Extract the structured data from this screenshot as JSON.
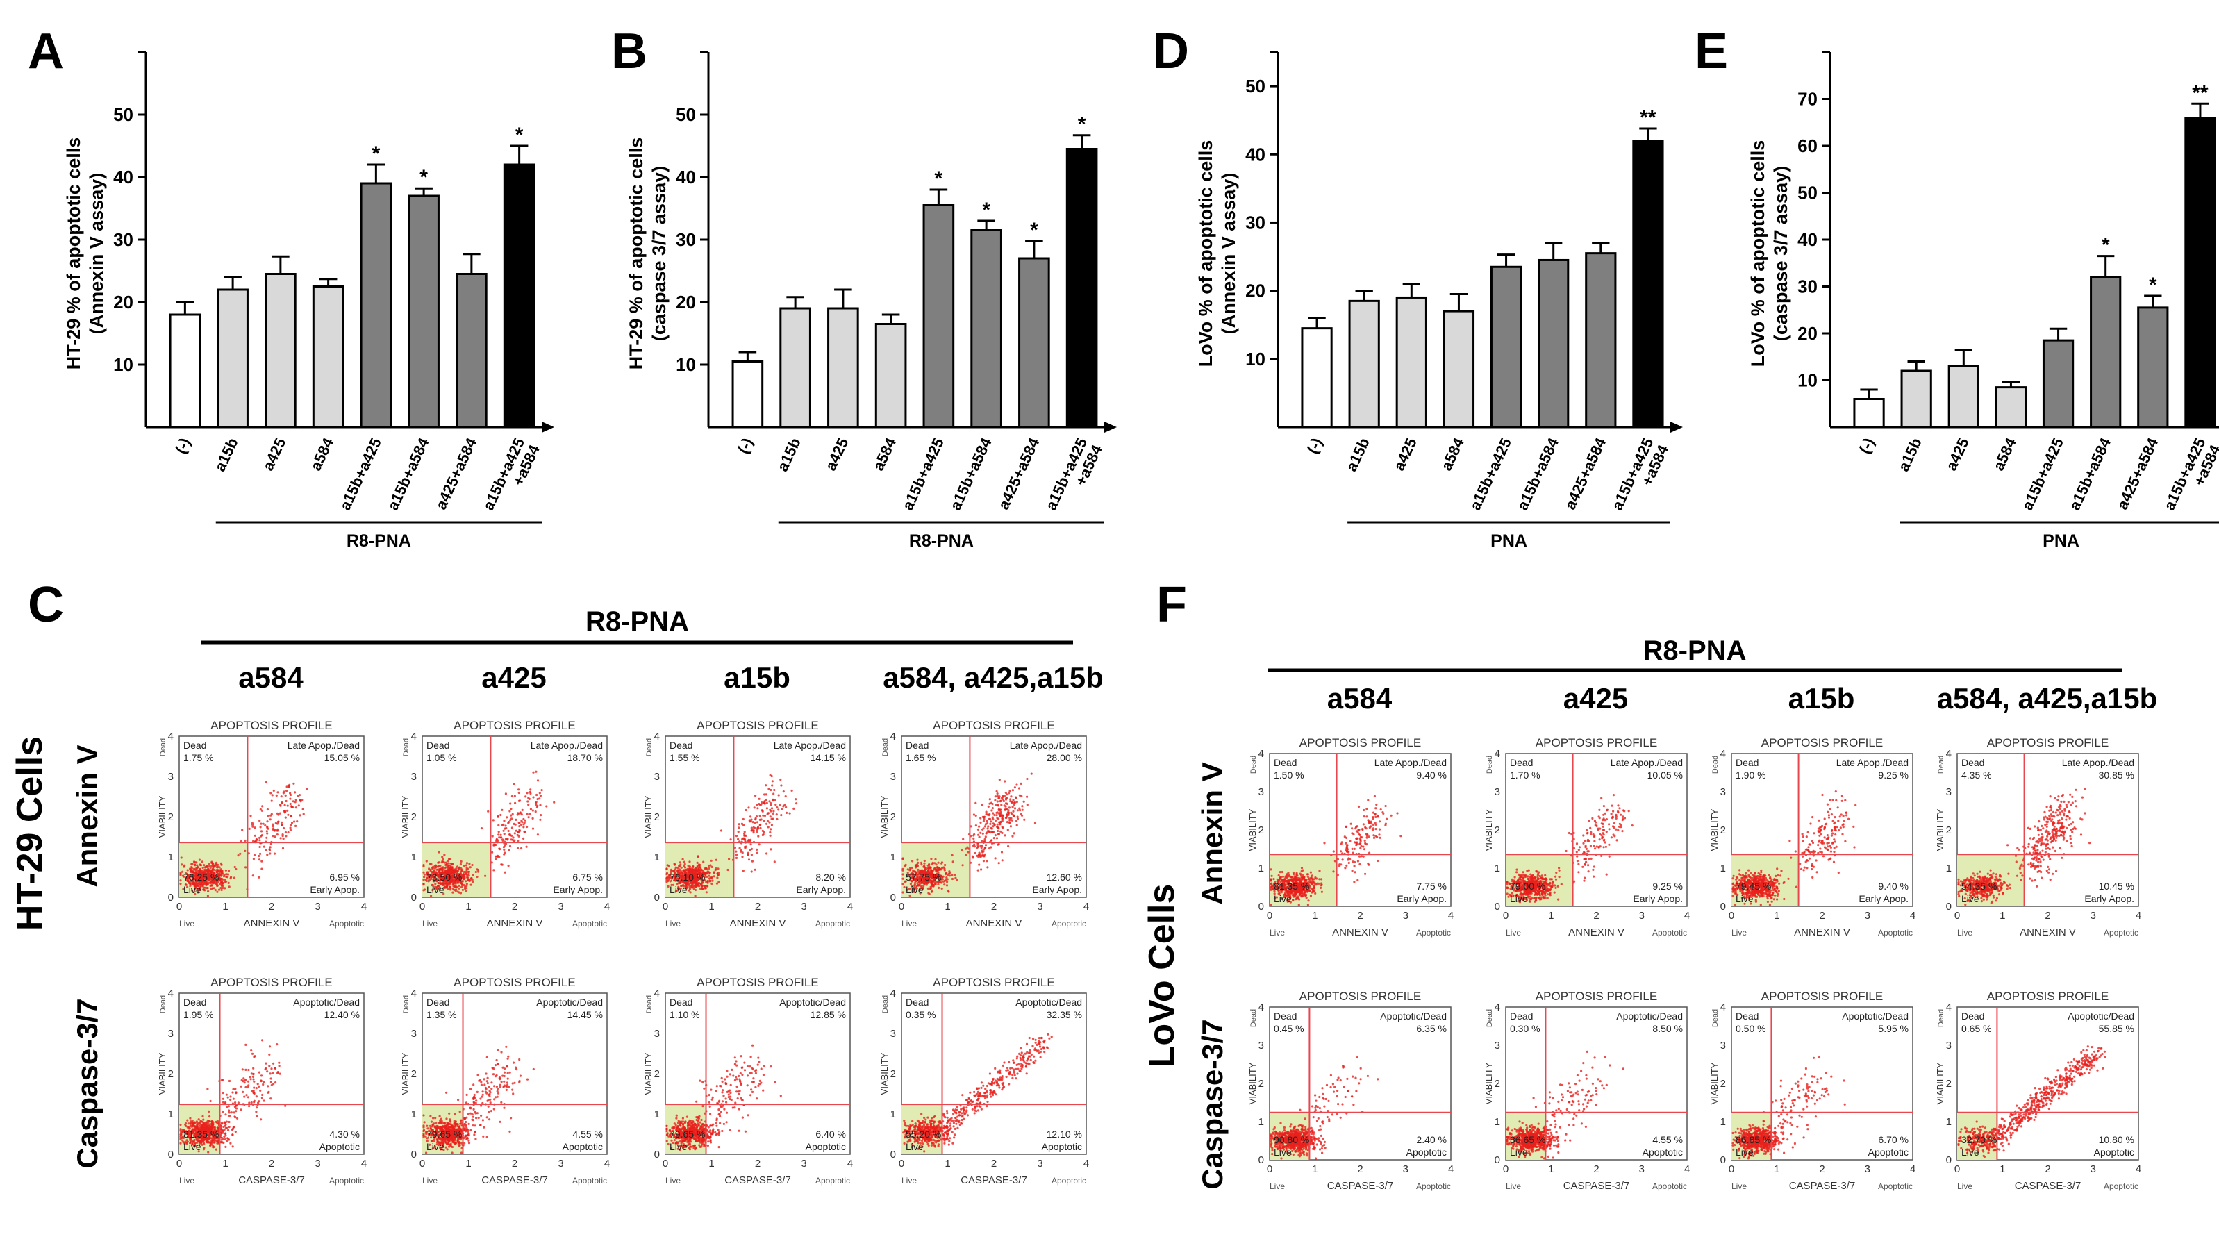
{
  "colors": {
    "open": "#ffffff",
    "light": "#d9d9d9",
    "mid": "#7f7f7f",
    "dark": "#000000",
    "dot": "#e8211d",
    "quad_line": "#e8474e",
    "live_zone": "#e1ecb4"
  },
  "chart_data": [
    {
      "type": "bar",
      "panel": "A",
      "ylabel_line1": "HT-29 % of apoptotic cells",
      "ylabel_line2": "(Annexin V assay)",
      "ylim": [
        0,
        60
      ],
      "yticks": [
        "10",
        "20",
        "30",
        "40",
        "50"
      ],
      "categories": [
        "(-)",
        "a15b",
        "a425",
        "a584",
        "a15b+a425",
        "a15b+a584",
        "a425+a584",
        "a15b+a425\n+a584"
      ],
      "values": [
        18,
        22,
        24.5,
        22.5,
        39,
        37,
        24.5,
        42
      ],
      "errors": [
        2,
        2,
        2.8,
        1.2,
        3,
        1.2,
        3.2,
        3
      ],
      "sig": [
        "",
        "",
        "",
        "",
        "*",
        "*",
        "",
        "*"
      ],
      "shades": [
        "open",
        "light",
        "light",
        "light",
        "mid",
        "mid",
        "mid",
        "dark"
      ],
      "group_label": "R8-PNA"
    },
    {
      "type": "bar",
      "panel": "B",
      "ylabel_line1": "HT-29 % of apoptotic cells",
      "ylabel_line2": "(caspase 3/7 assay)",
      "ylim": [
        0,
        60
      ],
      "yticks": [
        "10",
        "20",
        "30",
        "40",
        "50"
      ],
      "categories": [
        "(-)",
        "a15b",
        "a425",
        "a584",
        "a15b+a425",
        "a15b+a584",
        "a425+a584",
        "a15b+a425\n+a584"
      ],
      "values": [
        10.5,
        19,
        19,
        16.5,
        35.5,
        31.5,
        27,
        44.5
      ],
      "errors": [
        1.5,
        1.8,
        3,
        1.5,
        2.5,
        1.5,
        2.8,
        2.2
      ],
      "sig": [
        "",
        "",
        "",
        "",
        "*",
        "*",
        "*",
        "*"
      ],
      "shades": [
        "open",
        "light",
        "light",
        "light",
        "mid",
        "mid",
        "mid",
        "dark"
      ],
      "group_label": "R8-PNA"
    },
    {
      "type": "bar",
      "panel": "D",
      "ylabel_line1": "LoVo % of apoptotic cells",
      "ylabel_line2": "(Annexin V assay)",
      "ylim": [
        0,
        55
      ],
      "yticks": [
        "10",
        "20",
        "30",
        "40",
        "50"
      ],
      "categories": [
        "(-)",
        "a15b",
        "a425",
        "a584",
        "a15b+a425",
        "a15b+a584",
        "a425+a584",
        "a15b+a425\n+a584"
      ],
      "values": [
        14.5,
        18.5,
        19,
        17,
        23.5,
        24.5,
        25.5,
        42
      ],
      "errors": [
        1.5,
        1.5,
        2,
        2.5,
        1.8,
        2.5,
        1.5,
        1.8
      ],
      "sig": [
        "",
        "",
        "",
        "",
        "",
        "",
        "",
        "**"
      ],
      "shades": [
        "open",
        "light",
        "light",
        "light",
        "mid",
        "mid",
        "mid",
        "dark"
      ],
      "group_label": "PNA"
    },
    {
      "type": "bar",
      "panel": "E",
      "ylabel_line1": "LoVo % of apoptotic cells",
      "ylabel_line2": "(caspase 3/7 assay)",
      "ylim": [
        0,
        80
      ],
      "yticks": [
        "10",
        "20",
        "30",
        "40",
        "50",
        "60",
        "70"
      ],
      "categories": [
        "(-)",
        "a15b",
        "a425",
        "a584",
        "a15b+a425",
        "a15b+a584",
        "a425+a584",
        "a15b+a425\n+a584"
      ],
      "values": [
        6,
        12,
        13,
        8.5,
        18.5,
        32,
        25.5,
        66
      ],
      "errors": [
        2,
        2,
        3.5,
        1.2,
        2.5,
        4.5,
        2.5,
        3
      ],
      "sig": [
        "",
        "",
        "",
        "",
        "",
        "*",
        "*",
        "**"
      ],
      "shades": [
        "open",
        "light",
        "light",
        "light",
        "mid",
        "mid",
        "mid",
        "dark"
      ],
      "group_label": "PNA"
    }
  ],
  "flow": {
    "panel_C": {
      "letter": "C",
      "cells_label": "HT-29 Cells",
      "r8pna": "R8-PNA",
      "column_labels": [
        "a584",
        "a425",
        "a15b",
        "a584, a425,a15b"
      ],
      "row_labels": [
        "Annexin V",
        "Caspase-3/7"
      ]
    },
    "panel_F": {
      "letter": "F",
      "cells_label": "LoVo Cells",
      "r8pna": "R8-PNA",
      "column_labels": [
        "a584",
        "a425",
        "a15b",
        "a584, a425,a15b"
      ],
      "row_labels": [
        "Annexin V",
        "Caspase-3/7"
      ]
    },
    "plot_title": "APOPTOSIS PROFILE",
    "y_axis": "VIABILITY",
    "x_axis_annexin": "ANNEXIN V",
    "x_axis_caspase": "CASPASE-3/7",
    "x_left": "Live",
    "x_right": "Apoptotic",
    "y_top": "Dead",
    "ticks": [
      "0",
      "1",
      "2",
      "3",
      "4"
    ],
    "q_dead": "Dead",
    "q_late": "Late Apop./Dead",
    "q_apopdead": "Apoptotic/Dead",
    "q_live": "Live",
    "q_early": "Early Apop.",
    "q_apop": "Apoptotic",
    "plots": [
      {
        "panel": "C",
        "row": 0,
        "col": 0,
        "dead": "1.75 %",
        "late": "15.05 %",
        "live": "76.25 %",
        "early": "6.95 %",
        "pattern": "annexin"
      },
      {
        "panel": "C",
        "row": 0,
        "col": 1,
        "dead": "1.05 %",
        "late": "18.70 %",
        "live": "73.50 %",
        "early": "6.75 %",
        "pattern": "annexin"
      },
      {
        "panel": "C",
        "row": 0,
        "col": 2,
        "dead": "1.55 %",
        "late": "14.15 %",
        "live": "76.10 %",
        "early": "8.20 %",
        "pattern": "annexin"
      },
      {
        "panel": "C",
        "row": 0,
        "col": 3,
        "dead": "1.65 %",
        "late": "28.00 %",
        "live": "57.75 %",
        "early": "12.60 %",
        "pattern": "annexin-high"
      },
      {
        "panel": "C",
        "row": 1,
        "col": 0,
        "dead": "1.95 %",
        "late": "12.40 %",
        "live": "81.35 %",
        "early": "4.30 %",
        "pattern": "caspase"
      },
      {
        "panel": "C",
        "row": 1,
        "col": 1,
        "dead": "1.35 %",
        "late": "14.45 %",
        "live": "79.65 %",
        "early": "4.55 %",
        "pattern": "caspase"
      },
      {
        "panel": "C",
        "row": 1,
        "col": 2,
        "dead": "1.10 %",
        "late": "12.85 %",
        "live": "79.65 %",
        "early": "6.40 %",
        "pattern": "caspase"
      },
      {
        "panel": "C",
        "row": 1,
        "col": 3,
        "dead": "0.35 %",
        "late": "32.35 %",
        "live": "55.20 %",
        "early": "12.10 %",
        "pattern": "caspase-high"
      },
      {
        "panel": "F",
        "row": 0,
        "col": 0,
        "dead": "1.50 %",
        "late": "9.40 %",
        "live": "81.35 %",
        "early": "7.75 %",
        "pattern": "annexin"
      },
      {
        "panel": "F",
        "row": 0,
        "col": 1,
        "dead": "1.70 %",
        "late": "10.05 %",
        "live": "79.00 %",
        "early": "9.25 %",
        "pattern": "annexin"
      },
      {
        "panel": "F",
        "row": 0,
        "col": 2,
        "dead": "1.90 %",
        "late": "9.25 %",
        "live": "79.45 %",
        "early": "9.40 %",
        "pattern": "annexin"
      },
      {
        "panel": "F",
        "row": 0,
        "col": 3,
        "dead": "4.35 %",
        "late": "30.85 %",
        "live": "54.35 %",
        "early": "10.45 %",
        "pattern": "annexin-high"
      },
      {
        "panel": "F",
        "row": 1,
        "col": 0,
        "dead": "0.45 %",
        "late": "6.35 %",
        "live": "90.80 %",
        "early": "2.40 %",
        "pattern": "caspase-low"
      },
      {
        "panel": "F",
        "row": 1,
        "col": 1,
        "dead": "0.30 %",
        "late": "8.50 %",
        "live": "86.65 %",
        "early": "4.55 %",
        "pattern": "caspase-low"
      },
      {
        "panel": "F",
        "row": 1,
        "col": 2,
        "dead": "0.50 %",
        "late": "5.95 %",
        "live": "86.85 %",
        "early": "6.70 %",
        "pattern": "caspase-low"
      },
      {
        "panel": "F",
        "row": 1,
        "col": 3,
        "dead": "0.65 %",
        "late": "55.85 %",
        "live": "32.70 %",
        "early": "10.80 %",
        "pattern": "caspase-diag"
      }
    ]
  }
}
